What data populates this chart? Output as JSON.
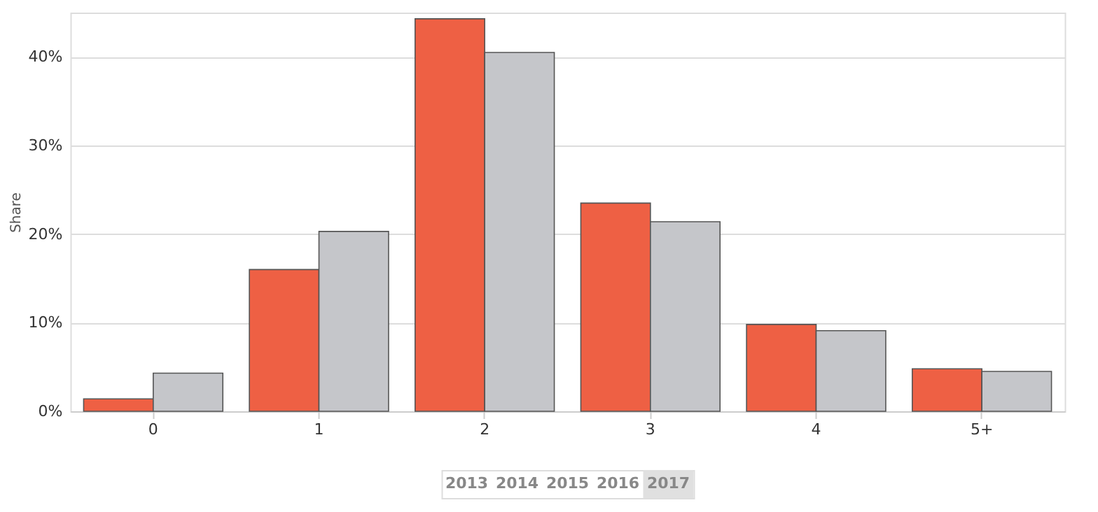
{
  "chart_data": {
    "type": "bar",
    "ylabel": "Share",
    "categories": [
      "0",
      "1",
      "2",
      "3",
      "4",
      "5+"
    ],
    "series": [
      {
        "color": "#ee6044",
        "values": [
          1.4,
          16,
          44.3,
          23.5,
          9.8,
          4.8
        ]
      },
      {
        "color": "#c5c6ca",
        "values": [
          4.3,
          20.3,
          40.5,
          21.4,
          9.1,
          4.5
        ]
      }
    ],
    "ylim": [
      0,
      45
    ],
    "yticks": [
      {
        "value": 0,
        "label": "0%"
      },
      {
        "value": 10,
        "label": "10%"
      },
      {
        "value": 20,
        "label": "20%"
      },
      {
        "value": 30,
        "label": "30%"
      },
      {
        "value": 40,
        "label": "40%"
      }
    ],
    "grid": "y",
    "legend": false,
    "annotations": [
      "2013",
      "2014",
      "2015",
      "2016",
      "2017"
    ]
  }
}
